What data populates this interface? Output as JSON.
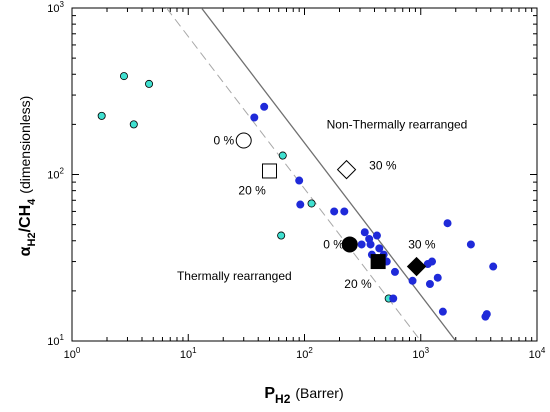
{
  "chart_data": {
    "type": "scatter",
    "title": "",
    "xlabel": "P",
    "xlabel_sub": "H2",
    "xlabel_unit": "(Barrer)",
    "ylabel": "α",
    "ylabel_sub": "H2",
    "ylabel_mid": "/CH",
    "ylabel_sub2": "4",
    "ylabel_unit": "(dimensionless)",
    "xscale": "log",
    "yscale": "log",
    "xlim": [
      1,
      10000
    ],
    "ylim": [
      10,
      1000
    ],
    "x_ticks": [
      {
        "value": 1,
        "base": "10",
        "exp": "0"
      },
      {
        "value": 10,
        "base": "10",
        "exp": "1"
      },
      {
        "value": 100,
        "base": "10",
        "exp": "2"
      },
      {
        "value": 1000,
        "base": "10",
        "exp": "3"
      },
      {
        "value": 10000,
        "base": "10",
        "exp": "4"
      }
    ],
    "y_ticks": [
      {
        "value": 10,
        "base": "10",
        "exp": "1"
      },
      {
        "value": 100,
        "base": "10",
        "exp": "2"
      },
      {
        "value": 1000,
        "base": "10",
        "exp": "3"
      }
    ],
    "grid": false,
    "upper_bound_line": {
      "style": "solid",
      "color": "#707070",
      "points": [
        [
          13,
          1000
        ],
        [
          2000,
          10
        ]
      ]
    },
    "prior_bound_line": {
      "style": "dashed",
      "color": "#a8a8a8",
      "points": [
        [
          6.5,
          1000
        ],
        [
          1000,
          10
        ]
      ]
    },
    "series": [
      {
        "marker": "circle",
        "fill": "#40e0d0",
        "stroke": "#000000",
        "points": [
          [
            1.8,
            225
          ],
          [
            2.8,
            390
          ],
          [
            3.4,
            200
          ],
          [
            4.6,
            350
          ],
          [
            65,
            130
          ],
          [
            63,
            43
          ],
          [
            115,
            67
          ],
          [
            530,
            18
          ]
        ]
      },
      {
        "marker": "circle",
        "fill": "#1f2ad9",
        "stroke": "#1f2ad9",
        "points": [
          [
            37,
            220
          ],
          [
            45,
            255
          ],
          [
            90,
            92
          ],
          [
            92,
            66
          ],
          [
            180,
            60
          ],
          [
            220,
            60
          ],
          [
            310,
            38
          ],
          [
            330,
            45
          ],
          [
            360,
            41
          ],
          [
            370,
            38
          ],
          [
            380,
            33
          ],
          [
            420,
            43
          ],
          [
            440,
            36
          ],
          [
            460,
            30
          ],
          [
            480,
            33
          ],
          [
            510,
            30
          ],
          [
            580,
            18
          ],
          [
            600,
            26
          ],
          [
            850,
            23
          ],
          [
            1150,
            29
          ],
          [
            1200,
            22
          ],
          [
            1250,
            30
          ],
          [
            1400,
            24
          ],
          [
            1550,
            15
          ],
          [
            1700,
            51
          ],
          [
            2700,
            38
          ],
          [
            3600,
            14
          ],
          [
            3700,
            14.5
          ],
          [
            4200,
            28
          ]
        ]
      }
    ],
    "markers": [
      {
        "name": "tr-0",
        "shape": "circle",
        "filled": false,
        "x": 30,
        "y": 160
      },
      {
        "name": "tr-20",
        "shape": "square",
        "filled": false,
        "x": 50,
        "y": 105
      },
      {
        "name": "ntr-30",
        "shape": "diamond",
        "filled": false,
        "x": 230,
        "y": 107
      },
      {
        "name": "ntr-0",
        "shape": "circle",
        "filled": true,
        "x": 245,
        "y": 38
      },
      {
        "name": "ntr-20",
        "shape": "square",
        "filled": true,
        "x": 430,
        "y": 30
      },
      {
        "name": "ntr-30b",
        "shape": "diamond",
        "filled": true,
        "x": 920,
        "y": 28
      }
    ],
    "annotations": [
      {
        "name": "label-0pct-open",
        "text": "0 %",
        "x": 16.5,
        "y": 160
      },
      {
        "name": "label-20pct-open",
        "text": "20 %",
        "x": 27,
        "y": 80
      },
      {
        "name": "label-30pct-open",
        "text": "30 %",
        "x": 360,
        "y": 113
      },
      {
        "name": "label-non-thermal",
        "text": "Non-Thermally rearranged",
        "x": 155,
        "y": 200
      },
      {
        "name": "label-0pct-filled",
        "text": "0 %",
        "x": 145,
        "y": 38
      },
      {
        "name": "label-30pct-filled",
        "text": "30 %",
        "x": 780,
        "y": 38
      },
      {
        "name": "label-20pct-filled",
        "text": "20 %",
        "x": 220,
        "y": 22
      },
      {
        "name": "label-thermal",
        "text": "Thermally rearranged",
        "x": 8,
        "y": 24.5
      }
    ]
  }
}
